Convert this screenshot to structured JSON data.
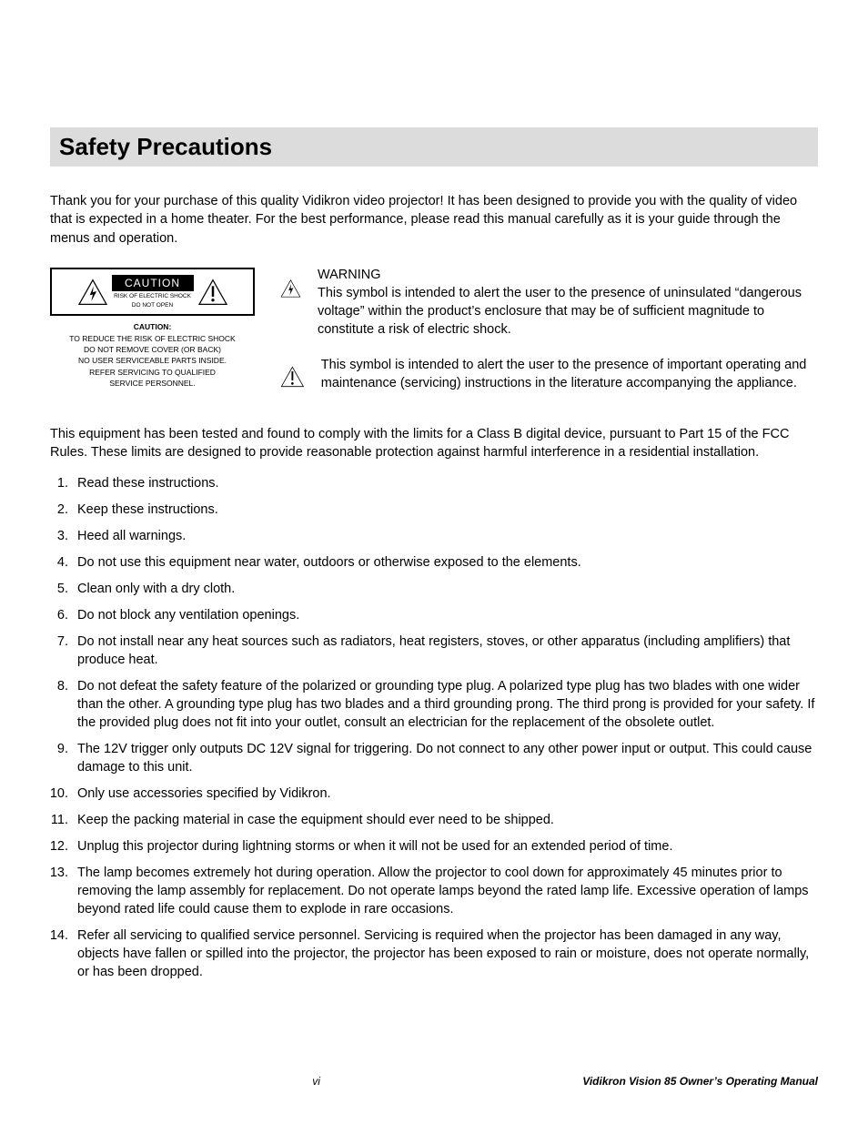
{
  "title": "Safety Precautions",
  "intro": "Thank you for your purchase of this quality Vidikron video projector! It has been designed to provide you with the quality of video that is expected in a home theater. For the best performance, please read this manual carefully as it is your guide through the menus and operation.",
  "caution_box": {
    "label": "CAUTION",
    "sub1": "RISK OF ELECTRIC SHOCK",
    "sub2": "DO NOT OPEN",
    "bottom_bold": "CAUTION:",
    "bottom_l1": "TO REDUCE THE RISK OF ELECTRIC SHOCK",
    "bottom_l2": "DO NOT REMOVE COVER (OR BACK)",
    "bottom_l3": "NO USER SERVICEABLE PARTS INSIDE.",
    "bottom_l4": "REFER SERVICING TO QUALIFIED",
    "bottom_l5": "SERVICE PERSONNEL."
  },
  "warning_header": "WARNING",
  "bolt_text": "This symbol is intended to alert the user to the presence of uninsulated “dangerous voltage” within the product’s enclosure that may be of sufficient magnitude to constitute a risk of electric shock.",
  "excl_text": "This symbol is intended to alert the user to the presence of important operating and maintenance (servicing) instructions in the literature accompanying the appliance.",
  "compliance": "This equipment has been tested and found to comply with the limits for a Class B digital device, pursuant to Part 15 of the FCC Rules. These limits are designed to provide reasonable protection against harmful interference in a residential installation.",
  "instructions": [
    "Read these instructions.",
    "Keep these instructions.",
    "Heed all warnings.",
    "Do not use this equipment near water, outdoors or otherwise exposed to the elements.",
    "Clean only with a dry cloth.",
    "Do not block any ventilation openings.",
    "Do not install near any heat sources such as radiators, heat registers, stoves, or other apparatus (including amplifiers) that produce heat.",
    "Do not defeat the safety feature of the polarized or grounding type plug. A polarized type plug has two blades with one wider than the other. A grounding type plug has two blades and a third grounding prong. The third prong is provided for your safety. If the provided plug does not fit into your outlet, consult an electrician for the replacement of the obsolete outlet.",
    "The 12V trigger only outputs DC 12V signal for triggering. Do not connect to any other power input or output. This could cause damage to this unit.",
    "Only use accessories specified by Vidikron.",
    "Keep the packing material in case the equipment should ever need to be shipped.",
    "Unplug this projector during lightning storms or when it will not be used for an extended period of time.",
    "The lamp becomes extremely hot during operation. Allow the projector to cool down for approximately 45 minutes prior to removing the lamp assembly for replacement. Do not operate lamps beyond the rated lamp life. Excessive operation of lamps beyond rated life could cause them to explode in rare occasions.",
    "Refer all servicing to qualified service personnel. Servicing is required when the projector has been damaged in any way, objects have fallen or spilled into the projector, the projector has been exposed to rain or moisture, does not operate normally, or has been dropped."
  ],
  "footer": {
    "page": "vi",
    "manual": "Vidikron Vision 85 Owner’s Operating Manual"
  },
  "colors": {
    "title_bg": "#dcdcdc",
    "text": "#000000",
    "page_bg": "#ffffff"
  }
}
